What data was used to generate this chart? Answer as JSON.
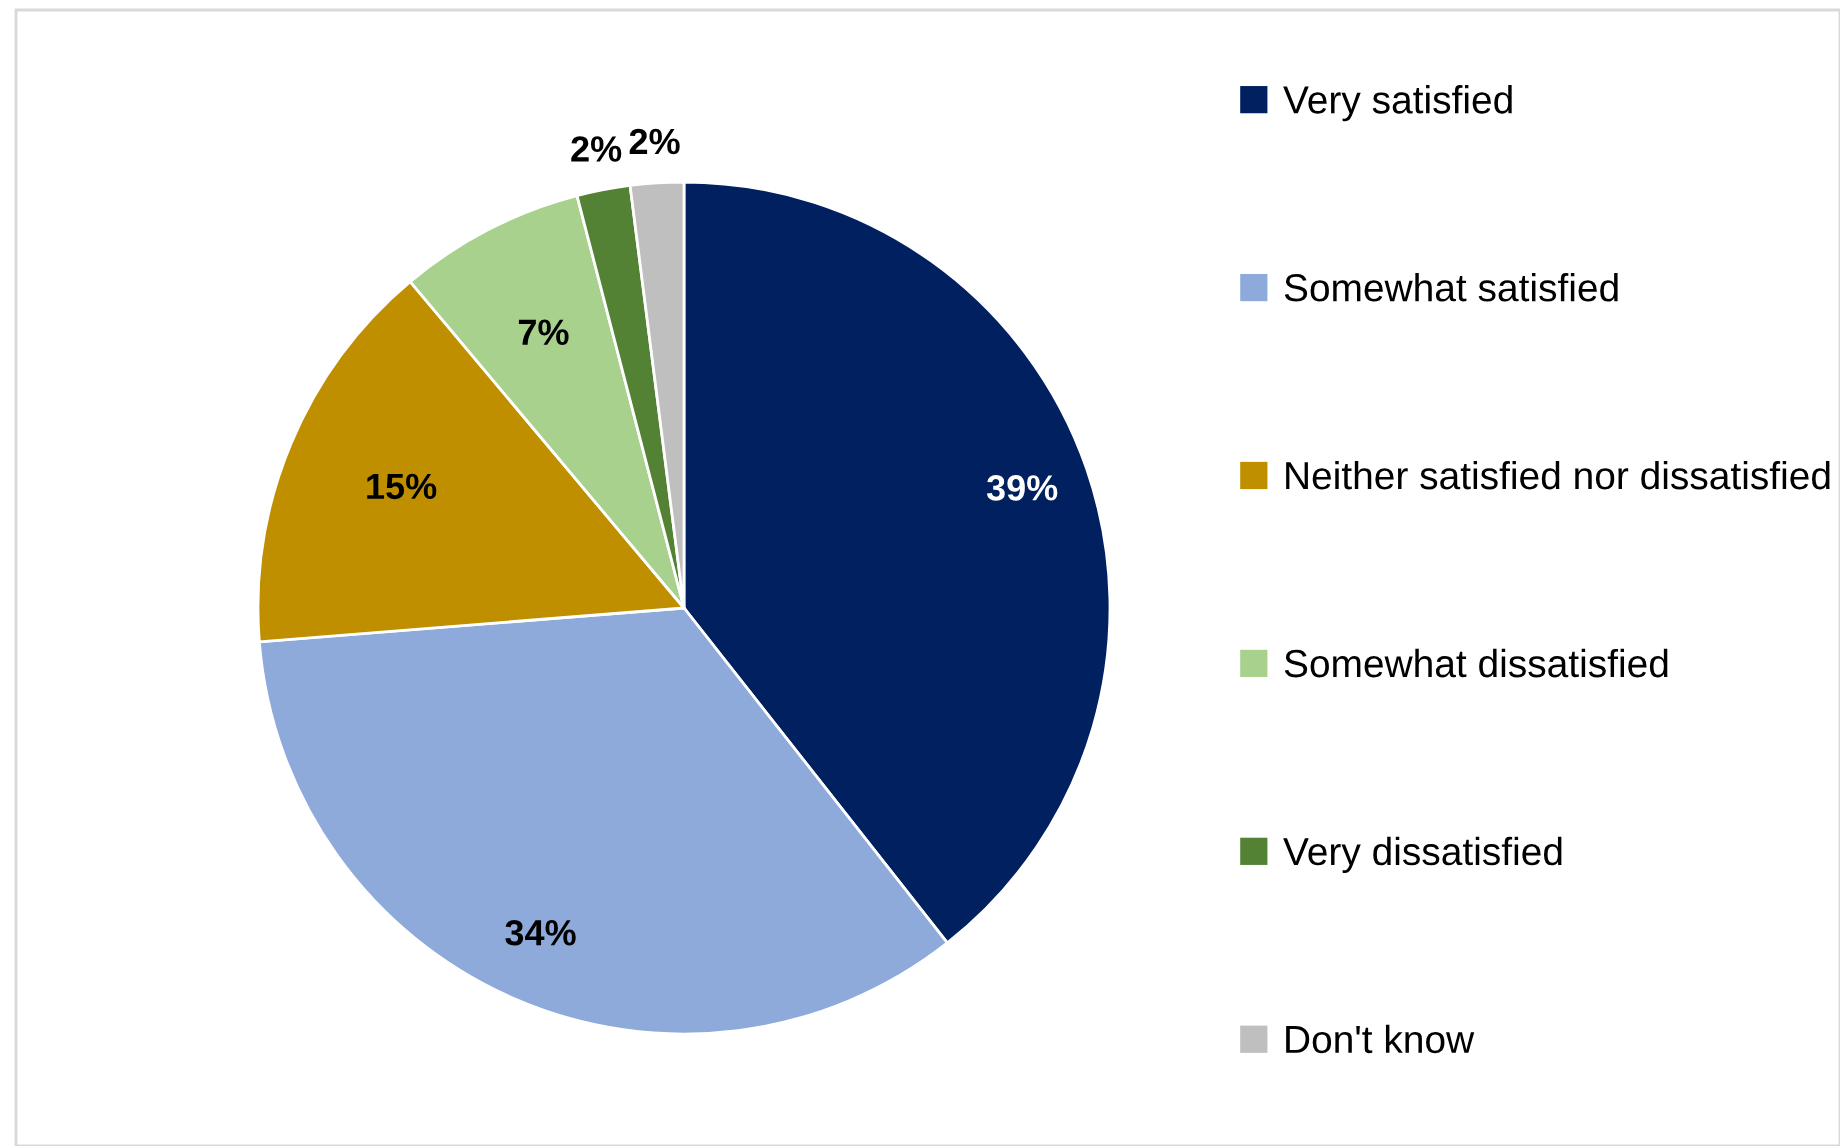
{
  "chart_data": {
    "type": "pie",
    "categories": [
      "Very satisfied",
      "Somewhat satisfied",
      "Neither satisfied nor dissatisfied",
      "Somewhat dissatisfied",
      "Very dissatisfied",
      "Don't know"
    ],
    "values": [
      39,
      34,
      15,
      7,
      2,
      2
    ],
    "colors": [
      "#002060",
      "#8eaadb",
      "#bf8f00",
      "#a9d18e",
      "#548235",
      "#bfbfbf"
    ],
    "value_labels": [
      "39%",
      "34%",
      "15%",
      "7%",
      "2%",
      "2%"
    ],
    "legend": "right"
  }
}
